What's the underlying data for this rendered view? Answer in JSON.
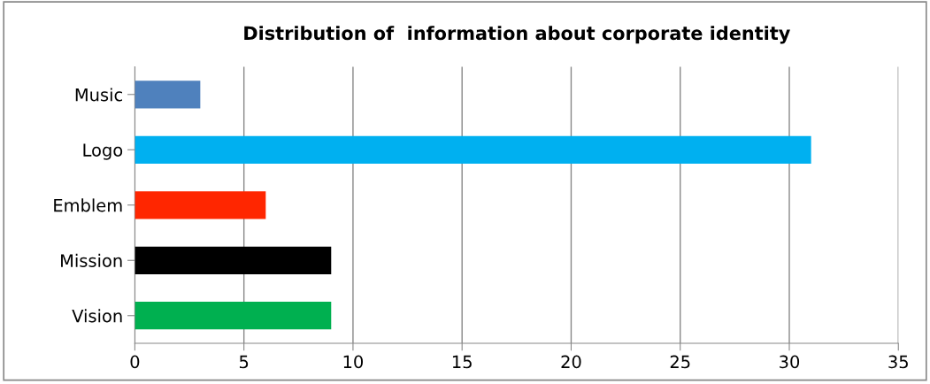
{
  "chart_data": {
    "type": "bar",
    "orientation": "horizontal",
    "title": "Distribution of  information about corporate identity",
    "categories": [
      "Music",
      "Logo",
      "Emblem",
      "Mission",
      "Vision"
    ],
    "values": [
      3,
      31,
      6,
      9,
      9
    ],
    "colors": [
      "#4f81bd",
      "#00b0f0",
      "#ff2600",
      "#000000",
      "#00b050"
    ],
    "xlim": [
      0,
      35
    ],
    "xticks": [
      0,
      5,
      10,
      15,
      20,
      25,
      30,
      35
    ],
    "grid": "x",
    "legend": false
  }
}
